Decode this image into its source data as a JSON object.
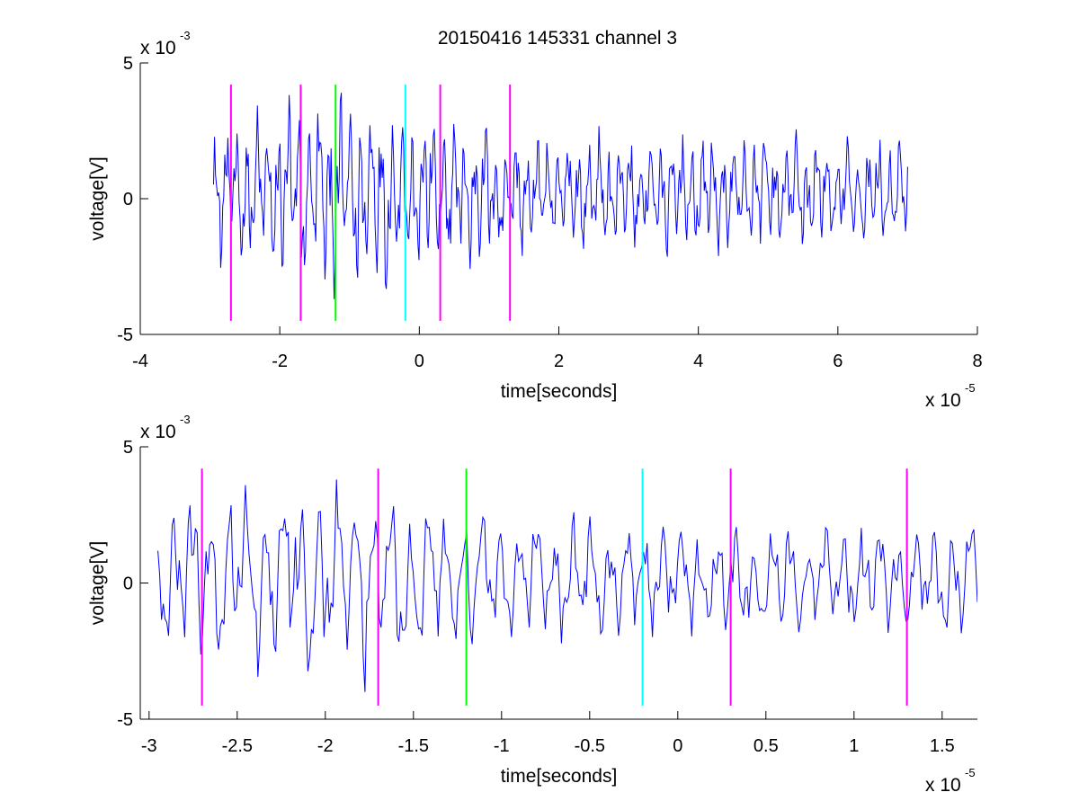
{
  "chart_data": [
    {
      "type": "line",
      "title": "20150416 145331 channel 3",
      "xlabel": "time[seconds]",
      "ylabel": "voltage[V]",
      "x_multiplier": "x 10",
      "x_multiplier_exp": "-5",
      "y_multiplier": "x 10",
      "y_multiplier_exp": "-3",
      "xlim": [
        -4,
        8
      ],
      "ylim": [
        -5,
        5
      ],
      "xticks": [
        "-4",
        "-2",
        "0",
        "2",
        "4",
        "6",
        "8"
      ],
      "xtick_values": [
        -4,
        -2,
        0,
        2,
        4,
        6,
        8
      ],
      "yticks": [
        "-5",
        "0",
        "5"
      ],
      "ytick_values": [
        -5,
        0,
        5
      ],
      "grid": false,
      "signal": {
        "color": "#0000ff",
        "x_start": -2.95,
        "x_end": 7.0,
        "samples": 680,
        "amplitude_range": [
          -3.7,
          3.9
        ]
      },
      "markers": [
        {
          "x": -2.7,
          "ymin": -4.5,
          "ymax": 4.2,
          "color": "#ff00ff"
        },
        {
          "x": -1.7,
          "ymin": -4.5,
          "ymax": 4.2,
          "color": "#ff00ff"
        },
        {
          "x": -1.2,
          "ymin": -4.5,
          "ymax": 4.2,
          "color": "#00ff00"
        },
        {
          "x": -0.2,
          "ymin": -4.5,
          "ymax": 4.2,
          "color": "#00ffff"
        },
        {
          "x": 0.3,
          "ymin": -4.5,
          "ymax": 4.2,
          "color": "#ff00ff"
        },
        {
          "x": 1.3,
          "ymin": -4.5,
          "ymax": 4.2,
          "color": "#ff00ff"
        }
      ]
    },
    {
      "type": "line",
      "title": "",
      "xlabel": "time[seconds]",
      "ylabel": "voltage[V]",
      "x_multiplier": "x 10",
      "x_multiplier_exp": "-5",
      "y_multiplier": "x 10",
      "y_multiplier_exp": "-3",
      "xlim": [
        -3.05,
        1.7
      ],
      "ylim": [
        -5,
        5
      ],
      "xticks": [
        "-3",
        "-2.5",
        "-2",
        "-1.5",
        "-1",
        "-0.5",
        "0",
        "0.5",
        "1",
        "1.5"
      ],
      "xtick_values": [
        -3,
        -2.5,
        -2,
        -1.5,
        -1,
        -0.5,
        0,
        0.5,
        1,
        1.5
      ],
      "yticks": [
        "-5",
        "0",
        "5"
      ],
      "ytick_values": [
        -5,
        0,
        5
      ],
      "grid": false,
      "signal": {
        "color": "#0000ff",
        "x_start": -2.95,
        "x_end": 1.7,
        "samples": 460,
        "amplitude_range": [
          -4.0,
          3.8
        ]
      },
      "markers": [
        {
          "x": -2.7,
          "ymin": -4.5,
          "ymax": 4.2,
          "color": "#ff00ff"
        },
        {
          "x": -1.7,
          "ymin": -4.5,
          "ymax": 4.2,
          "color": "#ff00ff"
        },
        {
          "x": -1.2,
          "ymin": -4.5,
          "ymax": 4.2,
          "color": "#00ff00"
        },
        {
          "x": -0.2,
          "ymin": -4.5,
          "ymax": 4.2,
          "color": "#00ffff"
        },
        {
          "x": 0.3,
          "ymin": -4.5,
          "ymax": 4.2,
          "color": "#ff00ff"
        },
        {
          "x": 1.3,
          "ymin": -4.5,
          "ymax": 4.2,
          "color": "#ff00ff"
        }
      ]
    }
  ]
}
